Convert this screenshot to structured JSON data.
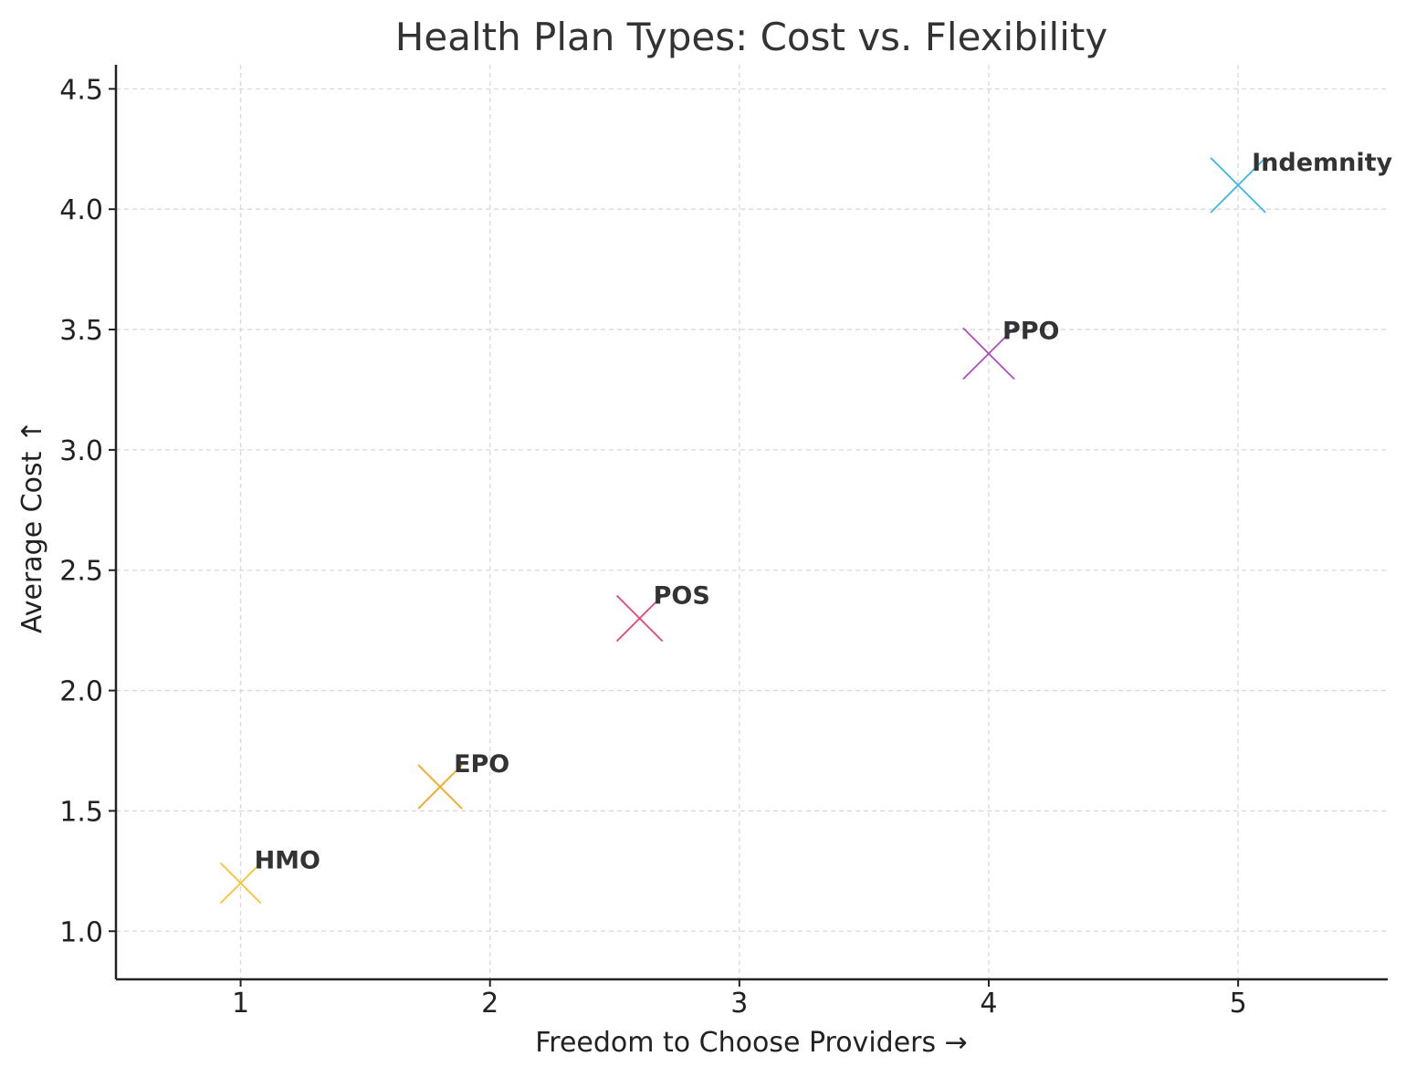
{
  "chart_data": {
    "type": "scatter",
    "title": "Health Plan Types: Cost vs. Flexibility",
    "xlabel": "Freedom to Choose Providers →",
    "ylabel": "Average Cost ↑",
    "xlim": [
      0.5,
      5.6
    ],
    "ylim": [
      0.8,
      4.6
    ],
    "xticks": [
      1,
      2,
      3,
      4,
      5
    ],
    "xtick_labels": [
      "1",
      "2",
      "3",
      "4",
      "5"
    ],
    "yticks": [
      1.0,
      1.5,
      2.0,
      2.5,
      3.0,
      3.5,
      4.0,
      4.5
    ],
    "ytick_labels": [
      "1.0",
      "1.5",
      "2.0",
      "2.5",
      "3.0",
      "3.5",
      "4.0",
      "4.5"
    ],
    "grid": true,
    "marker": "x",
    "points": [
      {
        "label": "HMO",
        "x": 1.0,
        "y": 1.2,
        "color": "#f7c331"
      },
      {
        "label": "EPO",
        "x": 1.8,
        "y": 1.6,
        "color": "#f2a928"
      },
      {
        "label": "POS",
        "x": 2.6,
        "y": 2.3,
        "color": "#e8437a"
      },
      {
        "label": "PPO",
        "x": 4.0,
        "y": 3.4,
        "color": "#ad4fc0"
      },
      {
        "label": "Indemnity",
        "x": 5.0,
        "y": 4.1,
        "color": "#3db5e8"
      }
    ]
  }
}
